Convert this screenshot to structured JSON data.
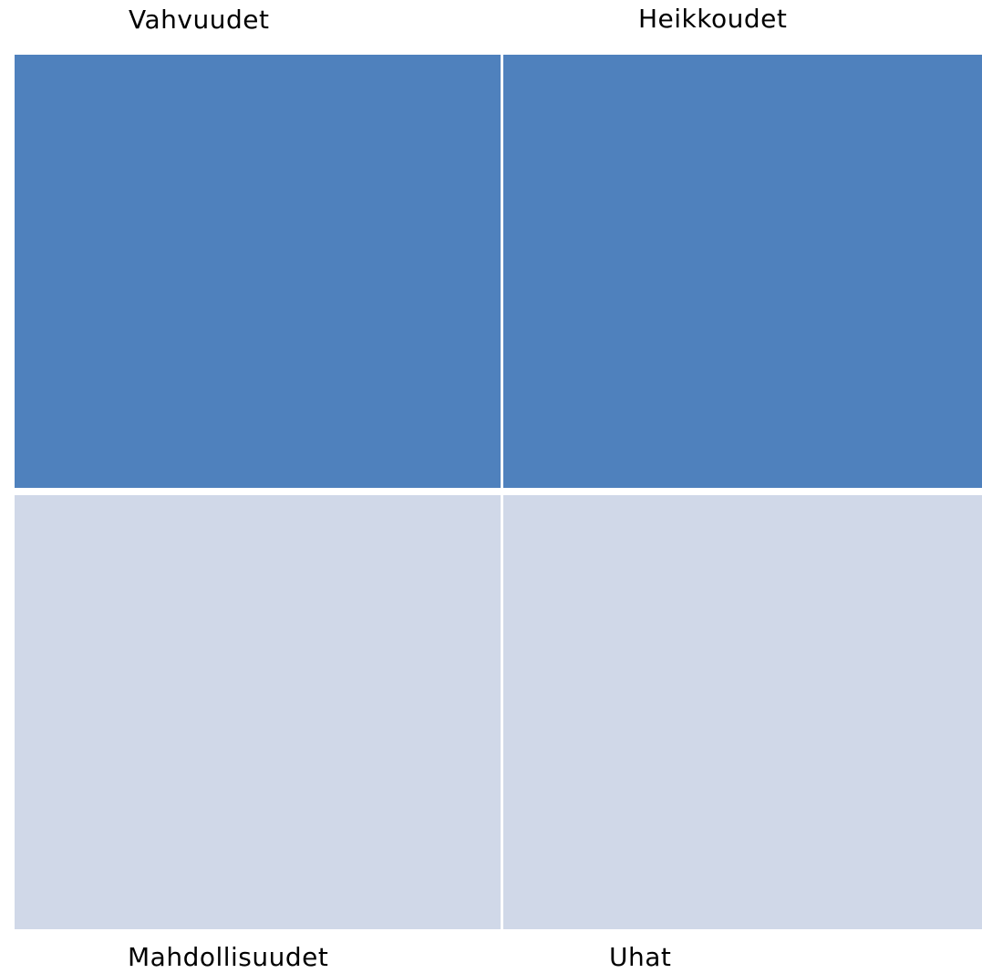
{
  "swot": {
    "strengths": {
      "label": "Vahvuudet",
      "color": "#4f81bd"
    },
    "weaknesses": {
      "label": "Heikkoudet",
      "color": "#4f81bd"
    },
    "opportunities": {
      "label": "Mahdollisuudet",
      "color": "#d0d8e8"
    },
    "threats": {
      "label": "Uhat",
      "color": "#d0d8e8"
    }
  }
}
